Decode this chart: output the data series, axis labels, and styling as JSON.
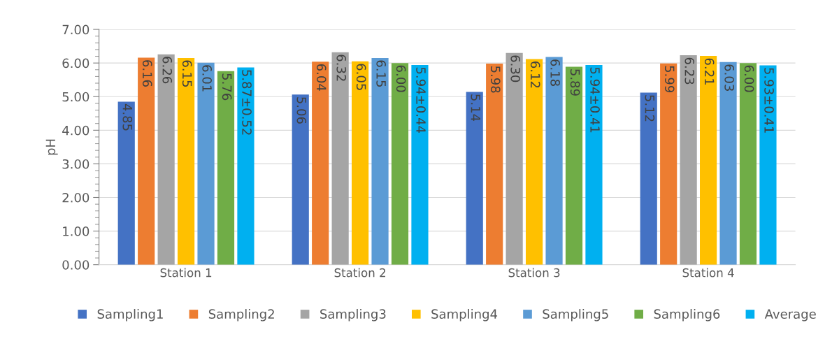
{
  "chart_data": {
    "type": "bar",
    "ylabel": "pH",
    "categories": [
      "Station 1",
      "Station 2",
      "Station 3",
      "Station 4"
    ],
    "series": [
      {
        "name": "Sampling1",
        "color": "#4472c4",
        "values": [
          4.85,
          5.06,
          5.14,
          5.12
        ],
        "value_labels": [
          "4.85",
          "5.06",
          "5.14",
          "5.12"
        ]
      },
      {
        "name": "Sampling2",
        "color": "#ed7d31",
        "values": [
          6.16,
          6.04,
          5.98,
          5.99
        ],
        "value_labels": [
          "6.16",
          "6.04",
          "5.98",
          "5.99"
        ]
      },
      {
        "name": "Sampling3",
        "color": "#a5a5a5",
        "values": [
          6.26,
          6.32,
          6.3,
          6.23
        ],
        "value_labels": [
          "6.26",
          "6.32",
          "6.30",
          "6.23"
        ]
      },
      {
        "name": "Sampling4",
        "color": "#ffc000",
        "values": [
          6.15,
          6.05,
          6.12,
          6.21
        ],
        "value_labels": [
          "6.15",
          "6.05",
          "6.12",
          "6.21"
        ]
      },
      {
        "name": "Sampling5",
        "color": "#5b9bd5",
        "values": [
          6.01,
          6.15,
          6.18,
          6.03
        ],
        "value_labels": [
          "6.01",
          "6.15",
          "6.18",
          "6.03"
        ]
      },
      {
        "name": "Sampling6",
        "color": "#70ad47",
        "values": [
          5.76,
          6.0,
          5.89,
          6.0
        ],
        "value_labels": [
          "5.76",
          "6.00",
          "5.89",
          "6.00"
        ]
      },
      {
        "name": "Average",
        "color": "#00b0f0",
        "values": [
          5.87,
          5.94,
          5.94,
          5.93
        ],
        "value_labels": [
          "5.87±0.52",
          "5.94±0.44",
          "5.94±0.41",
          "5.93±0.41"
        ]
      }
    ],
    "ylim": [
      0,
      7
    ],
    "yticks": [
      {
        "value": 0,
        "label": "0.00"
      },
      {
        "value": 1,
        "label": "1.00"
      },
      {
        "value": 2,
        "label": "2.00"
      },
      {
        "value": 3,
        "label": "3.00"
      },
      {
        "value": 4,
        "label": "4.00"
      },
      {
        "value": 5,
        "label": "5.00"
      },
      {
        "value": 6,
        "label": "6.00"
      },
      {
        "value": 7,
        "label": "7.00"
      }
    ],
    "grid": "y",
    "legend": "bottom"
  }
}
